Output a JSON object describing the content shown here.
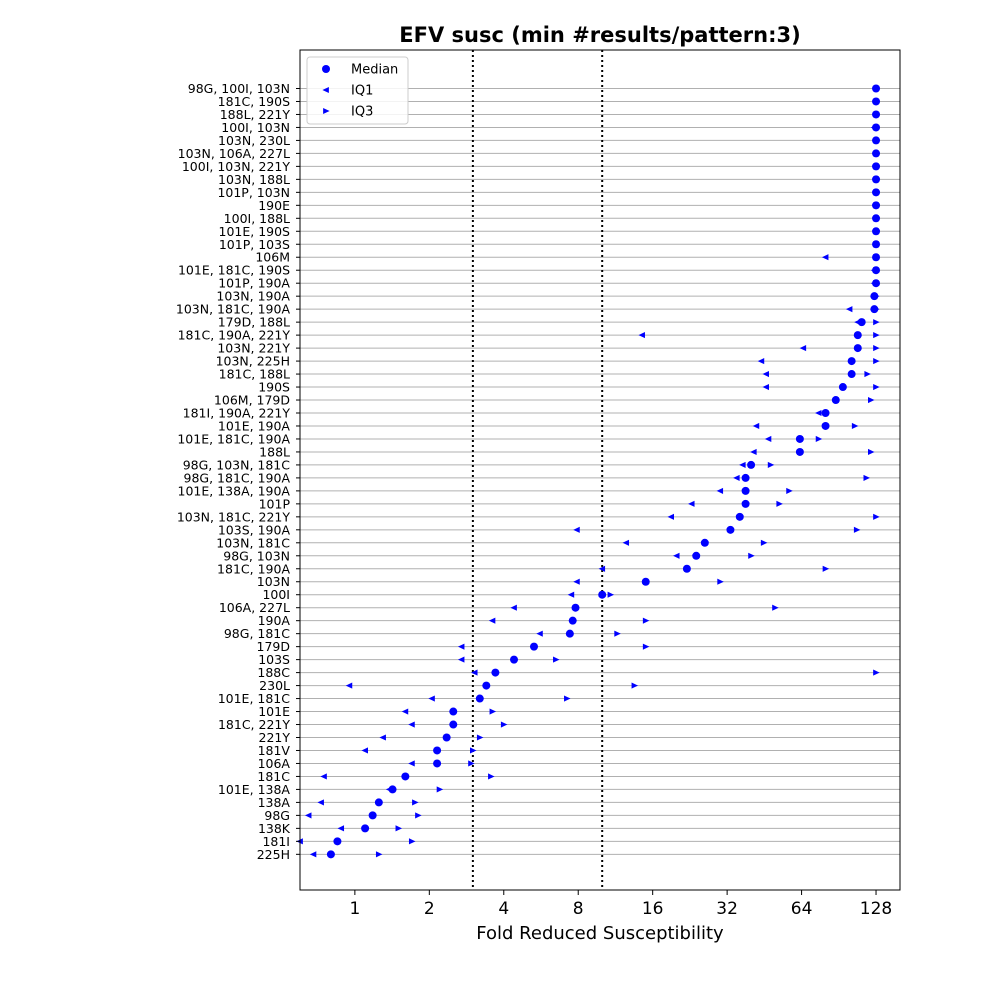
{
  "chart_data": {
    "type": "scatter",
    "title": "EFV susc (min #results/pattern:3)",
    "xlabel": "Fold Reduced Susceptibility",
    "ylabel": "",
    "x_scale": "log2",
    "xlim": [
      0.6,
      160
    ],
    "xticks": [
      1,
      2,
      4,
      8,
      16,
      32,
      64,
      128
    ],
    "xtick_labels": [
      "1",
      "2",
      "4",
      "8",
      "16",
      "32",
      "64",
      "128"
    ],
    "vertical_lines": [
      3.0,
      10.0
    ],
    "grid": "horizontal",
    "legend_position": "top-left",
    "legend": [
      "Median",
      "IQ1",
      "IQ3"
    ],
    "colors": {
      "marker": "#0000ff",
      "grid": "#b0b0b0"
    },
    "categories": [
      "98G, 100I, 103N",
      "181C, 190S",
      "188L, 221Y",
      "100I, 103N",
      "103N, 230L",
      "103N, 106A, 227L",
      "100I, 103N, 221Y",
      "103N, 188L",
      "101P, 103N",
      "190E",
      "100I, 188L",
      "101E, 190S",
      "101P, 103S",
      "106M",
      "101E, 181C, 190S",
      "101P, 190A",
      "103N, 190A",
      "103N, 181C, 190A",
      "179D, 188L",
      "181C, 190A, 221Y",
      "103N, 221Y",
      "103N, 225H",
      "181C, 188L",
      "190S",
      "106M, 179D",
      "181I, 190A, 221Y",
      "101E, 190A",
      "101E, 181C, 190A",
      "188L",
      "98G, 103N, 181C",
      "98G, 181C, 190A",
      "101E, 138A, 190A",
      "101P",
      "103N, 181C, 221Y",
      "103S, 190A",
      "103N, 181C",
      "98G, 103N",
      "181C, 190A",
      "103N",
      "100I",
      "106A, 227L",
      "190A",
      "98G, 181C",
      "179D",
      "103S",
      "188C",
      "230L",
      "101E, 181C",
      "101E",
      "181C, 221Y",
      "221Y",
      "181V",
      "106A",
      "181C",
      "101E, 138A",
      "138A",
      "98G",
      "138K",
      "181I",
      "225H"
    ],
    "series": [
      {
        "name": "Median",
        "values": [
          128,
          128,
          128,
          128,
          128,
          128,
          128,
          128,
          128,
          128,
          128,
          128,
          128,
          128,
          128,
          128,
          126,
          126,
          112,
          108,
          108,
          102,
          102,
          94,
          88,
          80,
          80,
          63,
          63,
          40,
          38,
          38,
          38,
          36,
          33,
          26,
          24,
          22,
          15,
          10,
          7.8,
          7.6,
          7.4,
          5.3,
          4.4,
          3.7,
          3.4,
          3.2,
          2.5,
          2.5,
          2.35,
          2.15,
          2.15,
          1.6,
          1.42,
          1.25,
          1.18,
          1.1,
          0.85,
          0.8
        ]
      },
      {
        "name": "IQ1",
        "values": [
          128,
          128,
          128,
          126,
          128,
          128,
          128,
          128,
          128,
          128,
          128,
          128,
          128,
          80,
          126,
          126,
          126,
          100,
          108,
          14.5,
          65,
          44,
          46,
          46,
          88,
          75,
          42,
          47,
          41,
          37,
          35,
          30,
          23,
          19,
          7.9,
          12.5,
          20,
          10,
          7.9,
          7.5,
          4.4,
          3.6,
          5.6,
          2.7,
          2.7,
          3.05,
          0.95,
          2.05,
          1.6,
          1.7,
          1.3,
          1.1,
          1.7,
          0.75,
          1.38,
          0.73,
          0.65,
          0.88,
          0.6,
          0.68
        ]
      },
      {
        "name": "IQ3",
        "values": [
          128,
          128,
          128,
          128,
          128,
          128,
          128,
          128,
          128,
          128,
          128,
          128,
          128,
          128,
          128,
          128,
          128,
          128,
          128,
          128,
          128,
          128,
          118,
          128,
          122,
          80,
          105,
          75,
          122,
          48,
          117,
          57,
          52,
          128,
          107,
          45,
          40,
          80,
          30,
          10.8,
          50,
          15,
          11.5,
          15,
          6.5,
          128,
          13.5,
          7.2,
          3.6,
          4,
          3.2,
          3.0,
          2.95,
          3.55,
          2.2,
          1.75,
          1.8,
          1.5,
          1.7,
          1.25
        ]
      }
    ]
  }
}
